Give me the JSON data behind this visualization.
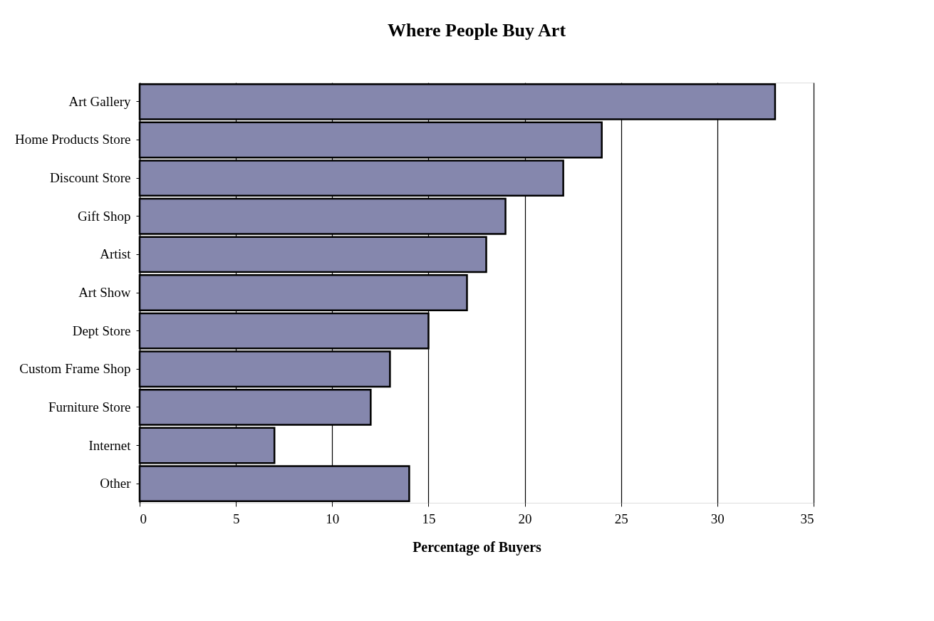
{
  "chart_data": {
    "type": "bar",
    "orientation": "horizontal",
    "title": "Where People Buy Art",
    "xlabel": "Percentage of Buyers",
    "categories": [
      "Art Gallery",
      "Home Products Store",
      "Discount Store",
      "Gift Shop",
      "Artist",
      "Art Show",
      "Dept Store",
      "Custom Frame Shop",
      "Furniture Store",
      "Internet",
      "Other"
    ],
    "values": [
      33,
      24,
      22,
      19,
      18,
      17,
      15,
      13,
      12,
      7,
      14
    ],
    "color": "#8587ad",
    "xlim": [
      0,
      35
    ],
    "xticks": [
      0,
      5,
      10,
      15,
      20,
      25,
      30,
      35
    ],
    "grid": "x"
  }
}
